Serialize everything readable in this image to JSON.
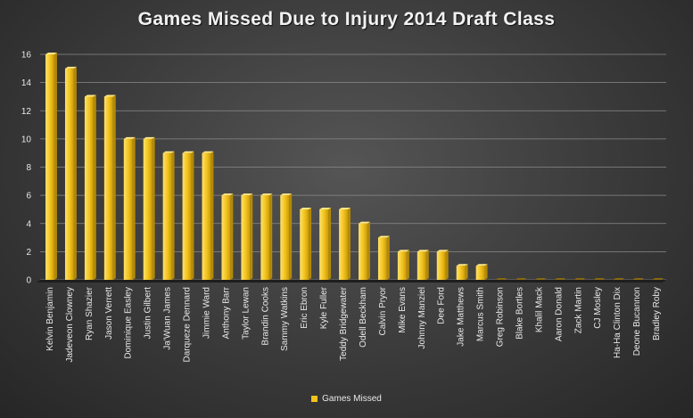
{
  "chart_data": {
    "type": "bar",
    "title": "Games Missed Due to Injury 2014 Draft Class",
    "xlabel": "",
    "ylabel": "",
    "ylim": [
      0,
      16
    ],
    "yticks": [
      "0",
      "2",
      "4",
      "6",
      "8",
      "10",
      "12",
      "14",
      "16"
    ],
    "grid": true,
    "legend_position": "bottom",
    "colors": {
      "bar": "#f2c21b",
      "bar_dark": "#b38a08",
      "grid": "#8a8a8a"
    },
    "categories": [
      "Kelvin Benjamin",
      "Jadeveon Clowney",
      "Ryan Shazier",
      "Jason Verrett",
      "Dominique Easley",
      "Justin Gilbert",
      "Ja'Wuan James",
      "Darqueze Dennard",
      "Jimmie Ward",
      "Anthony Barr",
      "Taylor Lewan",
      "Brandin Cooks",
      "Sammy Watkins",
      "Eric Ebron",
      "Kyle Fuller",
      "Teddy Bridgewater",
      "Odell Beckham",
      "Calvin Pryor",
      "Mike Evans",
      "Johnny Manziel",
      "Dee Ford",
      "Jake Matthews",
      "Marcus Smith",
      "Greg Robinson",
      "Blake Bortles",
      "Khalil Mack",
      "Aaron Donald",
      "Zack Martin",
      "CJ Mosley",
      "Ha-Ha Clinton Dix",
      "Deone Bucannon",
      "Bradley Roby"
    ],
    "series": [
      {
        "name": "Games Missed",
        "values": [
          16,
          15,
          13,
          13,
          10,
          10,
          9,
          9,
          9,
          6,
          6,
          6,
          6,
          5,
          5,
          5,
          4,
          3,
          2,
          2,
          2,
          1,
          1,
          0,
          0,
          0,
          0,
          0,
          0,
          0,
          0,
          0
        ]
      }
    ]
  }
}
